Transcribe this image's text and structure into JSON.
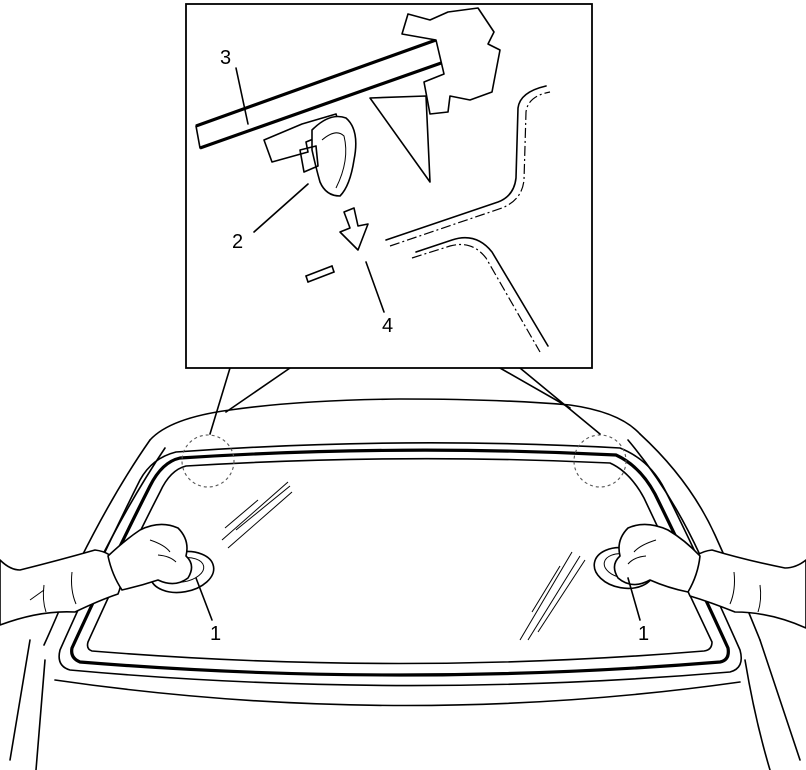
{
  "diagram": {
    "callouts": {
      "suction_cup_left": "1",
      "suction_cup_right": "1",
      "clip": "2",
      "glass_edge": "3",
      "body_hole": "4"
    }
  }
}
